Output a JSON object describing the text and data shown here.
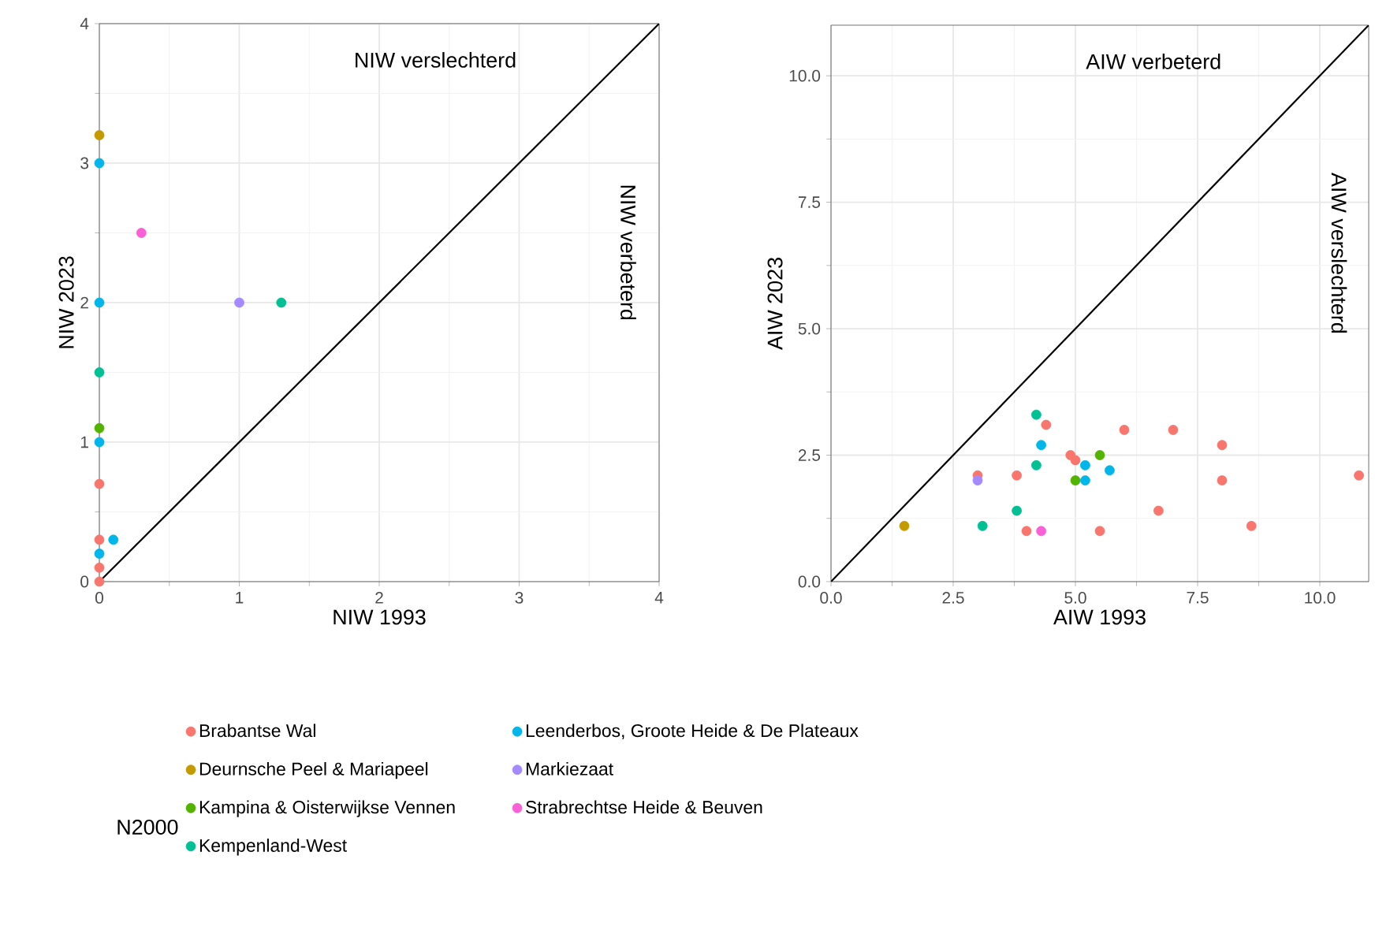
{
  "chart_data": [
    {
      "type": "scatter",
      "xlabel": "NIW 1993",
      "ylabel": "NIW 2023",
      "legend_title": "N2000",
      "legend": "bottom",
      "grid": true,
      "marker": "circle",
      "annotations": [
        "NIW verslechterd",
        "NIW verbeterd"
      ],
      "xlim": [
        0,
        4
      ],
      "ylim": [
        0,
        4
      ],
      "xticks": [
        0,
        1,
        2,
        3,
        4
      ],
      "yticks": [
        0,
        1,
        2,
        3,
        4
      ],
      "series": [
        {
          "name": "Brabantse Wal",
          "color": "#f8766d",
          "x": [
            0,
            0,
            0,
            0
          ],
          "values": [
            0.7,
            0.3,
            0.1,
            0
          ]
        },
        {
          "name": "Deurnsche Peel & Mariapeel",
          "color": "#c49a00",
          "x": [
            0
          ],
          "values": [
            3.2
          ]
        },
        {
          "name": "Kampina & Oisterwijkse Vennen",
          "color": "#53b400",
          "x": [
            0
          ],
          "values": [
            1.1
          ]
        },
        {
          "name": "Kempenland-West",
          "color": "#00c094",
          "x": [
            0,
            1.3
          ],
          "values": [
            1.5,
            2.0
          ]
        },
        {
          "name": "Leenderbos, Groote Heide & De Plateaux",
          "color": "#00b6eb",
          "x": [
            0,
            0,
            0,
            0,
            0.1
          ],
          "values": [
            3,
            2,
            1,
            0.2,
            0.3
          ]
        },
        {
          "name": "Markiezaat",
          "color": "#a58aff",
          "x": [
            1
          ],
          "values": [
            2
          ]
        },
        {
          "name": "Strabrechtse Heide & Beuven",
          "color": "#fb61d7",
          "x": [
            0.3
          ],
          "values": [
            2.5
          ]
        },
        {
          "type": "line",
          "marker": "none",
          "color": "#000000",
          "x": [
            0,
            4
          ],
          "values": [
            0,
            4
          ]
        }
      ]
    },
    {
      "type": "scatter",
      "xlabel": "AIW 1993",
      "ylabel": "AIW 2023",
      "grid": true,
      "marker": "circle",
      "annotations": [
        "AIW verbeterd",
        "AIW verslechterd"
      ],
      "xlim": [
        0,
        11
      ],
      "ylim": [
        0,
        11
      ],
      "xticks": [
        {
          "value": 0,
          "label": "0.0"
        },
        {
          "value": 2.5,
          "label": "2.5"
        },
        {
          "value": 5,
          "label": "5.0"
        },
        {
          "value": 7.5,
          "label": "7.5"
        },
        {
          "value": 10,
          "label": "10.0"
        }
      ],
      "yticks": [
        {
          "value": 0,
          "label": "0.0"
        },
        {
          "value": 2.5,
          "label": "2.5"
        },
        {
          "value": 5,
          "label": "5.0"
        },
        {
          "value": 7.5,
          "label": "7.5"
        },
        {
          "value": 10,
          "label": "10.0"
        }
      ],
      "series": [
        {
          "color": "#f8766d",
          "x": [
            3,
            3.8,
            4.0,
            4.4,
            4.9,
            5.0,
            5.5,
            6.0,
            7.0,
            6.7,
            8.0,
            8.0,
            8.6,
            10.8
          ],
          "values": [
            2.1,
            2.1,
            1.0,
            3.1,
            2.5,
            2.4,
            1.0,
            3.0,
            3.0,
            1.4,
            2.7,
            2.0,
            1.1,
            2.1
          ]
        },
        {
          "color": "#c49a00",
          "x": [
            1.5
          ],
          "values": [
            1.1
          ]
        },
        {
          "color": "#53b400",
          "x": [
            5.5,
            5.0
          ],
          "values": [
            2.5,
            2.0
          ]
        },
        {
          "color": "#00c094",
          "x": [
            3.1,
            3.8,
            4.2,
            4.2
          ],
          "values": [
            1.1,
            1.4,
            2.3,
            3.3
          ]
        },
        {
          "color": "#00b6eb",
          "x": [
            4.3,
            5.2,
            5.2,
            5.7
          ],
          "values": [
            2.7,
            2.3,
            2.0,
            2.2
          ]
        },
        {
          "color": "#a58aff",
          "x": [
            3
          ],
          "values": [
            2
          ]
        },
        {
          "color": "#fb61d7",
          "x": [
            4.3
          ],
          "values": [
            1.0
          ]
        },
        {
          "type": "line",
          "marker": "none",
          "color": "#000000",
          "x": [
            0,
            11
          ],
          "values": [
            0,
            11
          ]
        }
      ]
    }
  ]
}
